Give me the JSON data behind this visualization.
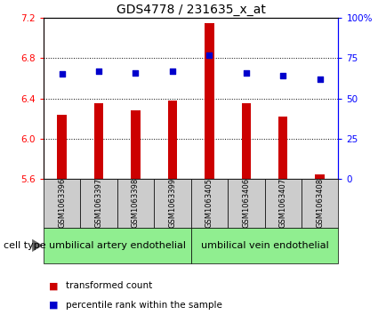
{
  "title": "GDS4778 / 231635_x_at",
  "samples": [
    "GSM1063396",
    "GSM1063397",
    "GSM1063398",
    "GSM1063399",
    "GSM1063405",
    "GSM1063406",
    "GSM1063407",
    "GSM1063408"
  ],
  "bar_values": [
    6.24,
    6.35,
    6.28,
    6.38,
    7.15,
    6.35,
    6.22,
    5.65
  ],
  "dot_values": [
    65,
    67,
    66,
    67,
    77,
    66,
    64,
    62
  ],
  "bar_color": "#cc0000",
  "dot_color": "#0000cc",
  "ylim_left": [
    5.6,
    7.2
  ],
  "ylim_right": [
    0,
    100
  ],
  "yticks_left": [
    5.6,
    6.0,
    6.4,
    6.8,
    7.2
  ],
  "yticks_right": [
    0,
    25,
    50,
    75,
    100
  ],
  "ytick_labels_right": [
    "0",
    "25",
    "50",
    "75",
    "100%"
  ],
  "grid_vals": [
    6.0,
    6.4,
    6.8
  ],
  "group1_label": "umbilical artery endothelial",
  "group2_label": "umbilical vein endothelial",
  "group1_indices": [
    0,
    1,
    2,
    3
  ],
  "group2_indices": [
    4,
    5,
    6,
    7
  ],
  "cell_type_label": "cell type",
  "legend_bar_label": "transformed count",
  "legend_dot_label": "percentile rank within the sample",
  "bar_width": 0.25,
  "title_fontsize": 10,
  "tick_fontsize": 7.5,
  "label_fontsize": 8,
  "group_fontsize": 8,
  "sample_fontsize": 6,
  "legend_fontsize": 7.5
}
